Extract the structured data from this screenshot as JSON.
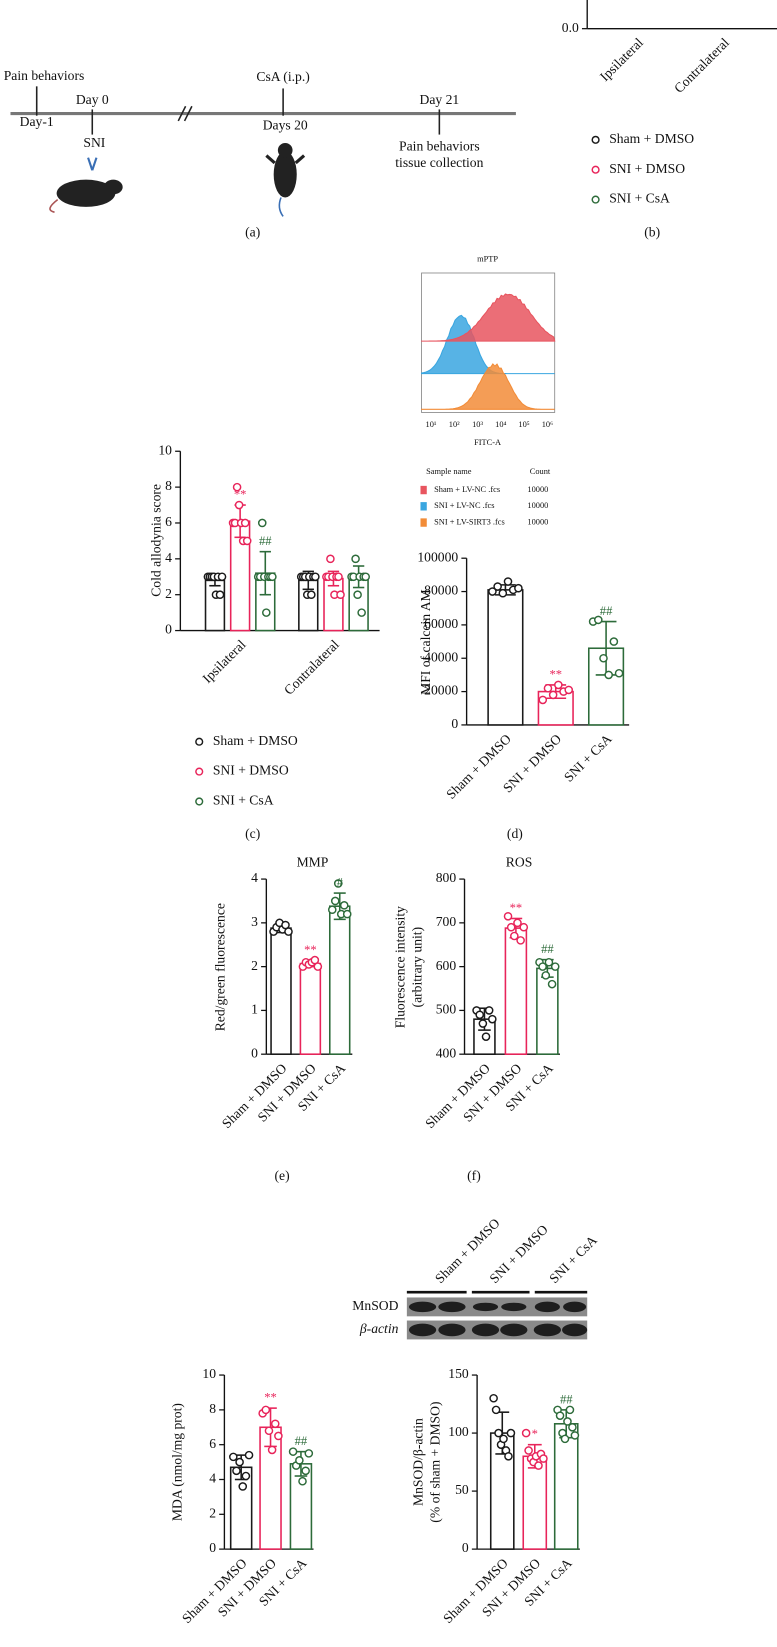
{
  "timeline": {
    "events": [
      {
        "above": "Pain behaviors",
        "below": "Day-1"
      },
      {
        "above": "Day 0",
        "below": "SNI"
      },
      {
        "above": "CsA (i.p.)",
        "below": "Days 20"
      },
      {
        "above": "Day 21",
        "below": "Pain behaviors",
        "below2": "tissue collection"
      }
    ],
    "panel_label": "(a)"
  },
  "flow": {
    "title": "mPTP",
    "x_label": "FITC-A",
    "xtick_labels": [
      "10¹",
      "10²",
      "10³",
      "10⁴",
      "10⁵",
      "10⁶"
    ],
    "legend_headers": [
      "Sample name",
      "Count"
    ],
    "legend": [
      {
        "name": "Sham + LV-NC .fcs",
        "count": 10000,
        "color": "#e8555f"
      },
      {
        "name": "SNI + LV-NC .fcs",
        "count": 10000,
        "color": "#3aa6e0"
      },
      {
        "name": "SNI + LV-SIRT3 .fcs",
        "count": 10000,
        "color": "#f28c38"
      }
    ]
  },
  "blot": {
    "lanes": [
      "Sham + DMSO",
      "SNI + DMSO",
      "SNI + CsA"
    ],
    "rows": [
      "MnSOD",
      "β-actin"
    ]
  },
  "chart_data": [
    {
      "type": "grouped-bar",
      "categories": [
        "Ipsilateral",
        "Contralateral"
      ],
      "yticks": [
        {
          "value": 0,
          "label": "0.0"
        }
      ],
      "series": [
        {
          "name": "Sham + DMSO",
          "color": "#1a1a1a"
        },
        {
          "name": "SNI + DMSO",
          "color": "#e8245a"
        },
        {
          "name": "SNI + CsA",
          "color": "#2d6b3a"
        }
      ],
      "panel_label": "(b)"
    },
    {
      "type": "grouped-bar",
      "y_label": "Cold allodynia score",
      "categories": [
        "Ipsilateral",
        "Contralateral"
      ],
      "ylim": [
        0,
        10
      ],
      "yticks": [
        0,
        2,
        4,
        6,
        8,
        10
      ],
      "series": [
        {
          "name": "Sham + DMSO",
          "color": "#1a1a1a",
          "values": [
            2.8,
            2.8
          ],
          "errors": [
            0.3,
            0.5
          ],
          "points": [
            [
              3,
              3,
              3,
              3,
              2,
              3,
              2,
              3
            ],
            [
              3,
              3,
              3,
              2,
              3,
              2,
              3,
              3
            ]
          ],
          "annotations": [
            null,
            null
          ]
        },
        {
          "name": "SNI + DMSO",
          "color": "#e8245a",
          "values": [
            6.1,
            2.9
          ],
          "errors": [
            0.9,
            0.4
          ],
          "points": [
            [
              6,
              6,
              8,
              7,
              6,
              5,
              6,
              5
            ],
            [
              3,
              3,
              4,
              3,
              2,
              3,
              3,
              2
            ]
          ],
          "annotations": [
            "**",
            null
          ]
        },
        {
          "name": "SNI + CsA",
          "color": "#2d6b3a",
          "values": [
            3.2,
            3.0
          ],
          "errors": [
            1.2,
            0.6
          ],
          "points": [
            [
              3,
              3,
              6,
              3,
              1,
              3,
              3,
              3
            ],
            [
              3,
              3,
              4,
              2,
              3,
              1,
              3,
              3
            ]
          ],
          "annotations": [
            "##",
            null
          ]
        }
      ],
      "panel_label": "(c)"
    },
    {
      "type": "bar",
      "y_label": "MFI of calcein AM",
      "categories": [
        "Sham + DMSO",
        "SNI + DMSO",
        "SNI + CsA"
      ],
      "colors": [
        "#1a1a1a",
        "#e8245a",
        "#2d6b3a"
      ],
      "ylim": [
        0,
        100000
      ],
      "yticks": [
        0,
        20000,
        40000,
        60000,
        80000,
        100000
      ],
      "values": [
        81000,
        20000,
        46000
      ],
      "errors": [
        3000,
        4000,
        16000
      ],
      "points": [
        [
          80000,
          83000,
          79000,
          86000,
          81000,
          82000
        ],
        [
          15000,
          22000,
          18000,
          24000,
          20000,
          21000
        ],
        [
          62000,
          63000,
          40000,
          30000,
          50000,
          31000
        ]
      ],
      "annotations": [
        null,
        "**",
        "##"
      ],
      "panel_label": "(d)"
    },
    {
      "type": "bar",
      "title": "MMP",
      "y_label": "Red/green fluorescence",
      "categories": [
        "Sham + DMSO",
        "SNI + DMSO",
        "SNI + CsA"
      ],
      "colors": [
        "#1a1a1a",
        "#e8245a",
        "#2d6b3a"
      ],
      "ylim": [
        0,
        4
      ],
      "yticks": [
        0,
        1,
        2,
        3,
        4
      ],
      "values": [
        2.88,
        2.07,
        3.38
      ],
      "errors": [
        0.1,
        0.07,
        0.3
      ],
      "points": [
        [
          2.8,
          2.9,
          3.0,
          2.85,
          2.95,
          2.8
        ],
        [
          2.0,
          2.1,
          2.05,
          2.1,
          2.15,
          2.0
        ],
        [
          3.3,
          3.5,
          3.9,
          3.2,
          3.4,
          3.2
        ]
      ],
      "annotations": [
        null,
        "**",
        "#"
      ],
      "panel_label": "(e)"
    },
    {
      "type": "bar",
      "title": "ROS",
      "y_label": [
        "Fluorescence intensity",
        "(arbitrary unit)"
      ],
      "categories": [
        "Sham + DMSO",
        "SNI + DMSO",
        "SNI + CsA"
      ],
      "colors": [
        "#1a1a1a",
        "#e8245a",
        "#2d6b3a"
      ],
      "ylim": [
        400,
        800
      ],
      "yticks": [
        400,
        500,
        600,
        700,
        800
      ],
      "values": [
        480,
        688,
        596
      ],
      "errors": [
        25,
        22,
        20
      ],
      "points": [
        [
          500,
          490,
          470,
          440,
          500,
          480
        ],
        [
          715,
          690,
          670,
          700,
          660,
          690
        ],
        [
          610,
          600,
          580,
          610,
          560,
          600
        ]
      ],
      "annotations": [
        null,
        "**",
        "##"
      ],
      "panel_label": "(f)"
    },
    {
      "type": "bar",
      "y_label": "MDA (nmol/mg prot)",
      "categories": [
        "Sham + DMSO",
        "SNI + DMSO",
        "SNI + CsA"
      ],
      "colors": [
        "#1a1a1a",
        "#e8245a",
        "#2d6b3a"
      ],
      "ylim": [
        0,
        10
      ],
      "yticks": [
        0,
        2,
        4,
        6,
        8,
        10
      ],
      "values": [
        4.7,
        7.0,
        4.9
      ],
      "errors": [
        0.7,
        1.1,
        0.7
      ],
      "points": [
        [
          5.3,
          4.5,
          5.0,
          3.6,
          4.2,
          5.4
        ],
        [
          7.8,
          8.0,
          6.8,
          5.7,
          7.2,
          6.5
        ],
        [
          5.6,
          4.8,
          5.1,
          3.9,
          4.5,
          5.5
        ]
      ],
      "annotations": [
        null,
        "**",
        "##"
      ]
    },
    {
      "type": "bar",
      "y_label": [
        "MnSOD/β-actin",
        "(% of sham + DMSO)"
      ],
      "categories": [
        "Sham + DMSO",
        "SNI + DMSO",
        "SNI + CsA"
      ],
      "colors": [
        "#1a1a1a",
        "#e8245a",
        "#2d6b3a"
      ],
      "ylim": [
        0,
        150
      ],
      "yticks": [
        0,
        50,
        100,
        150
      ],
      "values": [
        100,
        80,
        108
      ],
      "errors": [
        18,
        10,
        12
      ],
      "points": [
        [
          130,
          120,
          100,
          90,
          95,
          85,
          80,
          100
        ],
        [
          100,
          85,
          78,
          75,
          80,
          72,
          82,
          78
        ],
        [
          120,
          115,
          100,
          95,
          110,
          120,
          105,
          98
        ]
      ],
      "annotations": [
        null,
        "*",
        "##"
      ]
    }
  ]
}
